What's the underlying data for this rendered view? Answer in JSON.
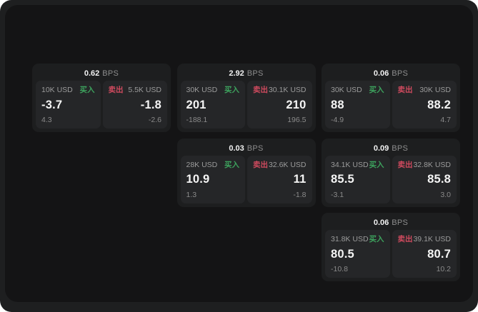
{
  "labels": {
    "bps_unit": "BPS",
    "buy": "买入",
    "sell": "卖出"
  },
  "colors": {
    "buy_green": "#3da25d",
    "sell_red": "#cf4a5e",
    "card_bg": "#1d1e1f",
    "panel_bg": "#252628",
    "surface_bg": "#141415"
  },
  "cards": [
    {
      "row": 1,
      "col": 1,
      "bps": "0.62",
      "buy": {
        "amount": "10K USD",
        "value": "-3.7",
        "sub": "4.3"
      },
      "sell": {
        "amount": "5.5K USD",
        "value": "-1.8",
        "sub": "-2.6"
      }
    },
    {
      "row": 1,
      "col": 2,
      "bps": "2.92",
      "buy": {
        "amount": "30K USD",
        "value": "201",
        "sub": "-188.1"
      },
      "sell": {
        "amount": "30.1K USD",
        "value": "210",
        "sub": "196.5"
      }
    },
    {
      "row": 1,
      "col": 3,
      "bps": "0.06",
      "buy": {
        "amount": "30K USD",
        "value": "88",
        "sub": "-4.9"
      },
      "sell": {
        "amount": "30K USD",
        "value": "88.2",
        "sub": "4.7"
      }
    },
    {
      "row": 2,
      "col": 2,
      "bps": "0.03",
      "buy": {
        "amount": "28K USD",
        "value": "10.9",
        "sub": "1.3"
      },
      "sell": {
        "amount": "32.6K USD",
        "value": "11",
        "sub": "-1.8"
      }
    },
    {
      "row": 2,
      "col": 3,
      "bps": "0.09",
      "buy": {
        "amount": "34.1K USD",
        "value": "85.5",
        "sub": "-3.1"
      },
      "sell": {
        "amount": "32.8K USD",
        "value": "85.8",
        "sub": "3.0"
      }
    },
    {
      "row": 3,
      "col": 3,
      "bps": "0.06",
      "buy": {
        "amount": "31.8K USD",
        "value": "80.5",
        "sub": "-10.8"
      },
      "sell": {
        "amount": "39.1K USD",
        "value": "80.7",
        "sub": "10.2"
      }
    }
  ]
}
